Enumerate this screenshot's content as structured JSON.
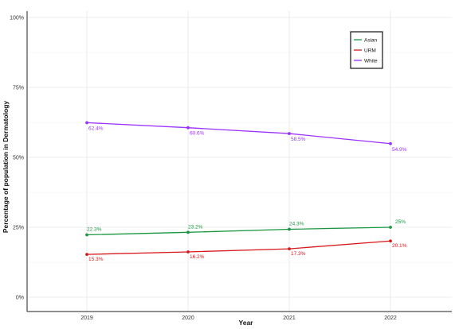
{
  "chart_data": {
    "type": "line",
    "xlabel": "Year",
    "ylabel": "Percentage of population in Dermatology",
    "categories": [
      "2019",
      "2020",
      "2021",
      "2022"
    ],
    "ylim": [
      0,
      100
    ],
    "yticks": [
      0,
      25,
      50,
      75,
      100
    ],
    "ytick_labels": [
      "0%",
      "25%",
      "50%",
      "75%",
      "100%"
    ],
    "grid": true,
    "legend": "top-right",
    "series": [
      {
        "name": "Asian",
        "color": "#1a9641",
        "values": [
          22.3,
          23.2,
          24.3,
          25
        ],
        "labels": [
          "22.3%",
          "23.2%",
          "24.3%",
          "25%"
        ]
      },
      {
        "name": "URM",
        "color": "#d7191c",
        "values": [
          15.3,
          16.2,
          17.3,
          20.1
        ],
        "labels": [
          "15.3%",
          "16.2%",
          "17.3%",
          "20.1%"
        ]
      },
      {
        "name": "White",
        "color": "#9b30ff",
        "values": [
          62.4,
          60.6,
          58.5,
          54.9
        ],
        "labels": [
          "62.4%",
          "60.6%",
          "58.5%",
          "54.9%"
        ]
      }
    ]
  }
}
